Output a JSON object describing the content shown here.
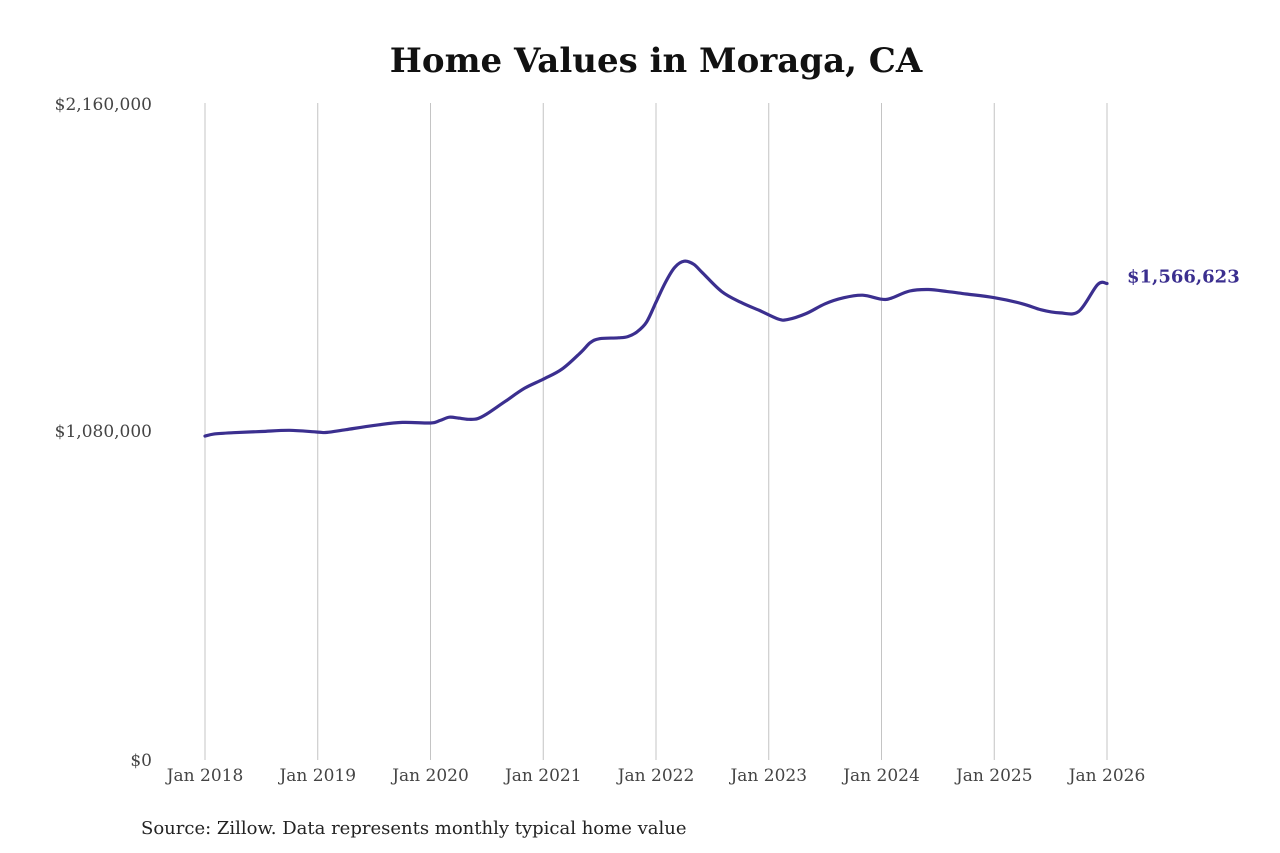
{
  "chart_data": {
    "type": "line",
    "title": "Home Values in Moraga, CA",
    "source": "Source: Zillow. Data represents monthly typical home value",
    "x_ticks": [
      "Jan 2018",
      "Jan 2019",
      "Jan 2020",
      "Jan 2021",
      "Jan 2022",
      "Jan 2023",
      "Jan 2024",
      "Jan 2025",
      "Jan 2026"
    ],
    "y_ticks": [
      "$0",
      "$1,080,000",
      "$2,160,000"
    ],
    "ylim": [
      0,
      2160000
    ],
    "xlim": [
      "2018-01",
      "2026-01"
    ],
    "grid": "vertical",
    "line_color": "#3b2f8f",
    "end_label": "$1,566,623",
    "series": [
      {
        "values": [
          [
            "2018-01",
            1065000
          ],
          [
            "2018-02",
            1072000
          ],
          [
            "2018-04",
            1076000
          ],
          [
            "2018-07",
            1080000
          ],
          [
            "2018-10",
            1084000
          ],
          [
            "2019-01",
            1078000
          ],
          [
            "2019-02",
            1077000
          ],
          [
            "2019-04",
            1086000
          ],
          [
            "2019-07",
            1100000
          ],
          [
            "2019-10",
            1110000
          ],
          [
            "2020-01",
            1108000
          ],
          [
            "2020-02",
            1116000
          ],
          [
            "2020-03",
            1127000
          ],
          [
            "2020-04",
            1124000
          ],
          [
            "2020-05",
            1120000
          ],
          [
            "2020-06",
            1122000
          ],
          [
            "2020-07",
            1138000
          ],
          [
            "2020-09",
            1180000
          ],
          [
            "2020-11",
            1222000
          ],
          [
            "2021-01",
            1252000
          ],
          [
            "2021-03",
            1285000
          ],
          [
            "2021-05",
            1340000
          ],
          [
            "2021-06",
            1372000
          ],
          [
            "2021-07",
            1385000
          ],
          [
            "2021-09",
            1388000
          ],
          [
            "2021-10",
            1392000
          ],
          [
            "2021-11",
            1408000
          ],
          [
            "2021-12",
            1440000
          ],
          [
            "2022-01",
            1505000
          ],
          [
            "2022-02",
            1570000
          ],
          [
            "2022-03",
            1620000
          ],
          [
            "2022-04",
            1640000
          ],
          [
            "2022-05",
            1630000
          ],
          [
            "2022-06",
            1600000
          ],
          [
            "2022-08",
            1540000
          ],
          [
            "2022-10",
            1505000
          ],
          [
            "2022-12",
            1478000
          ],
          [
            "2023-02",
            1450000
          ],
          [
            "2023-03",
            1448000
          ],
          [
            "2023-05",
            1468000
          ],
          [
            "2023-07",
            1500000
          ],
          [
            "2023-09",
            1520000
          ],
          [
            "2023-11",
            1528000
          ],
          [
            "2024-01",
            1515000
          ],
          [
            "2024-02",
            1518000
          ],
          [
            "2024-04",
            1542000
          ],
          [
            "2024-06",
            1547000
          ],
          [
            "2024-08",
            1540000
          ],
          [
            "2024-10",
            1532000
          ],
          [
            "2025-01",
            1520000
          ],
          [
            "2025-04",
            1500000
          ],
          [
            "2025-06",
            1480000
          ],
          [
            "2025-08",
            1470000
          ],
          [
            "2025-10",
            1475000
          ],
          [
            "2025-12",
            1563000
          ],
          [
            "2026-01",
            1566623
          ]
        ]
      }
    ]
  }
}
